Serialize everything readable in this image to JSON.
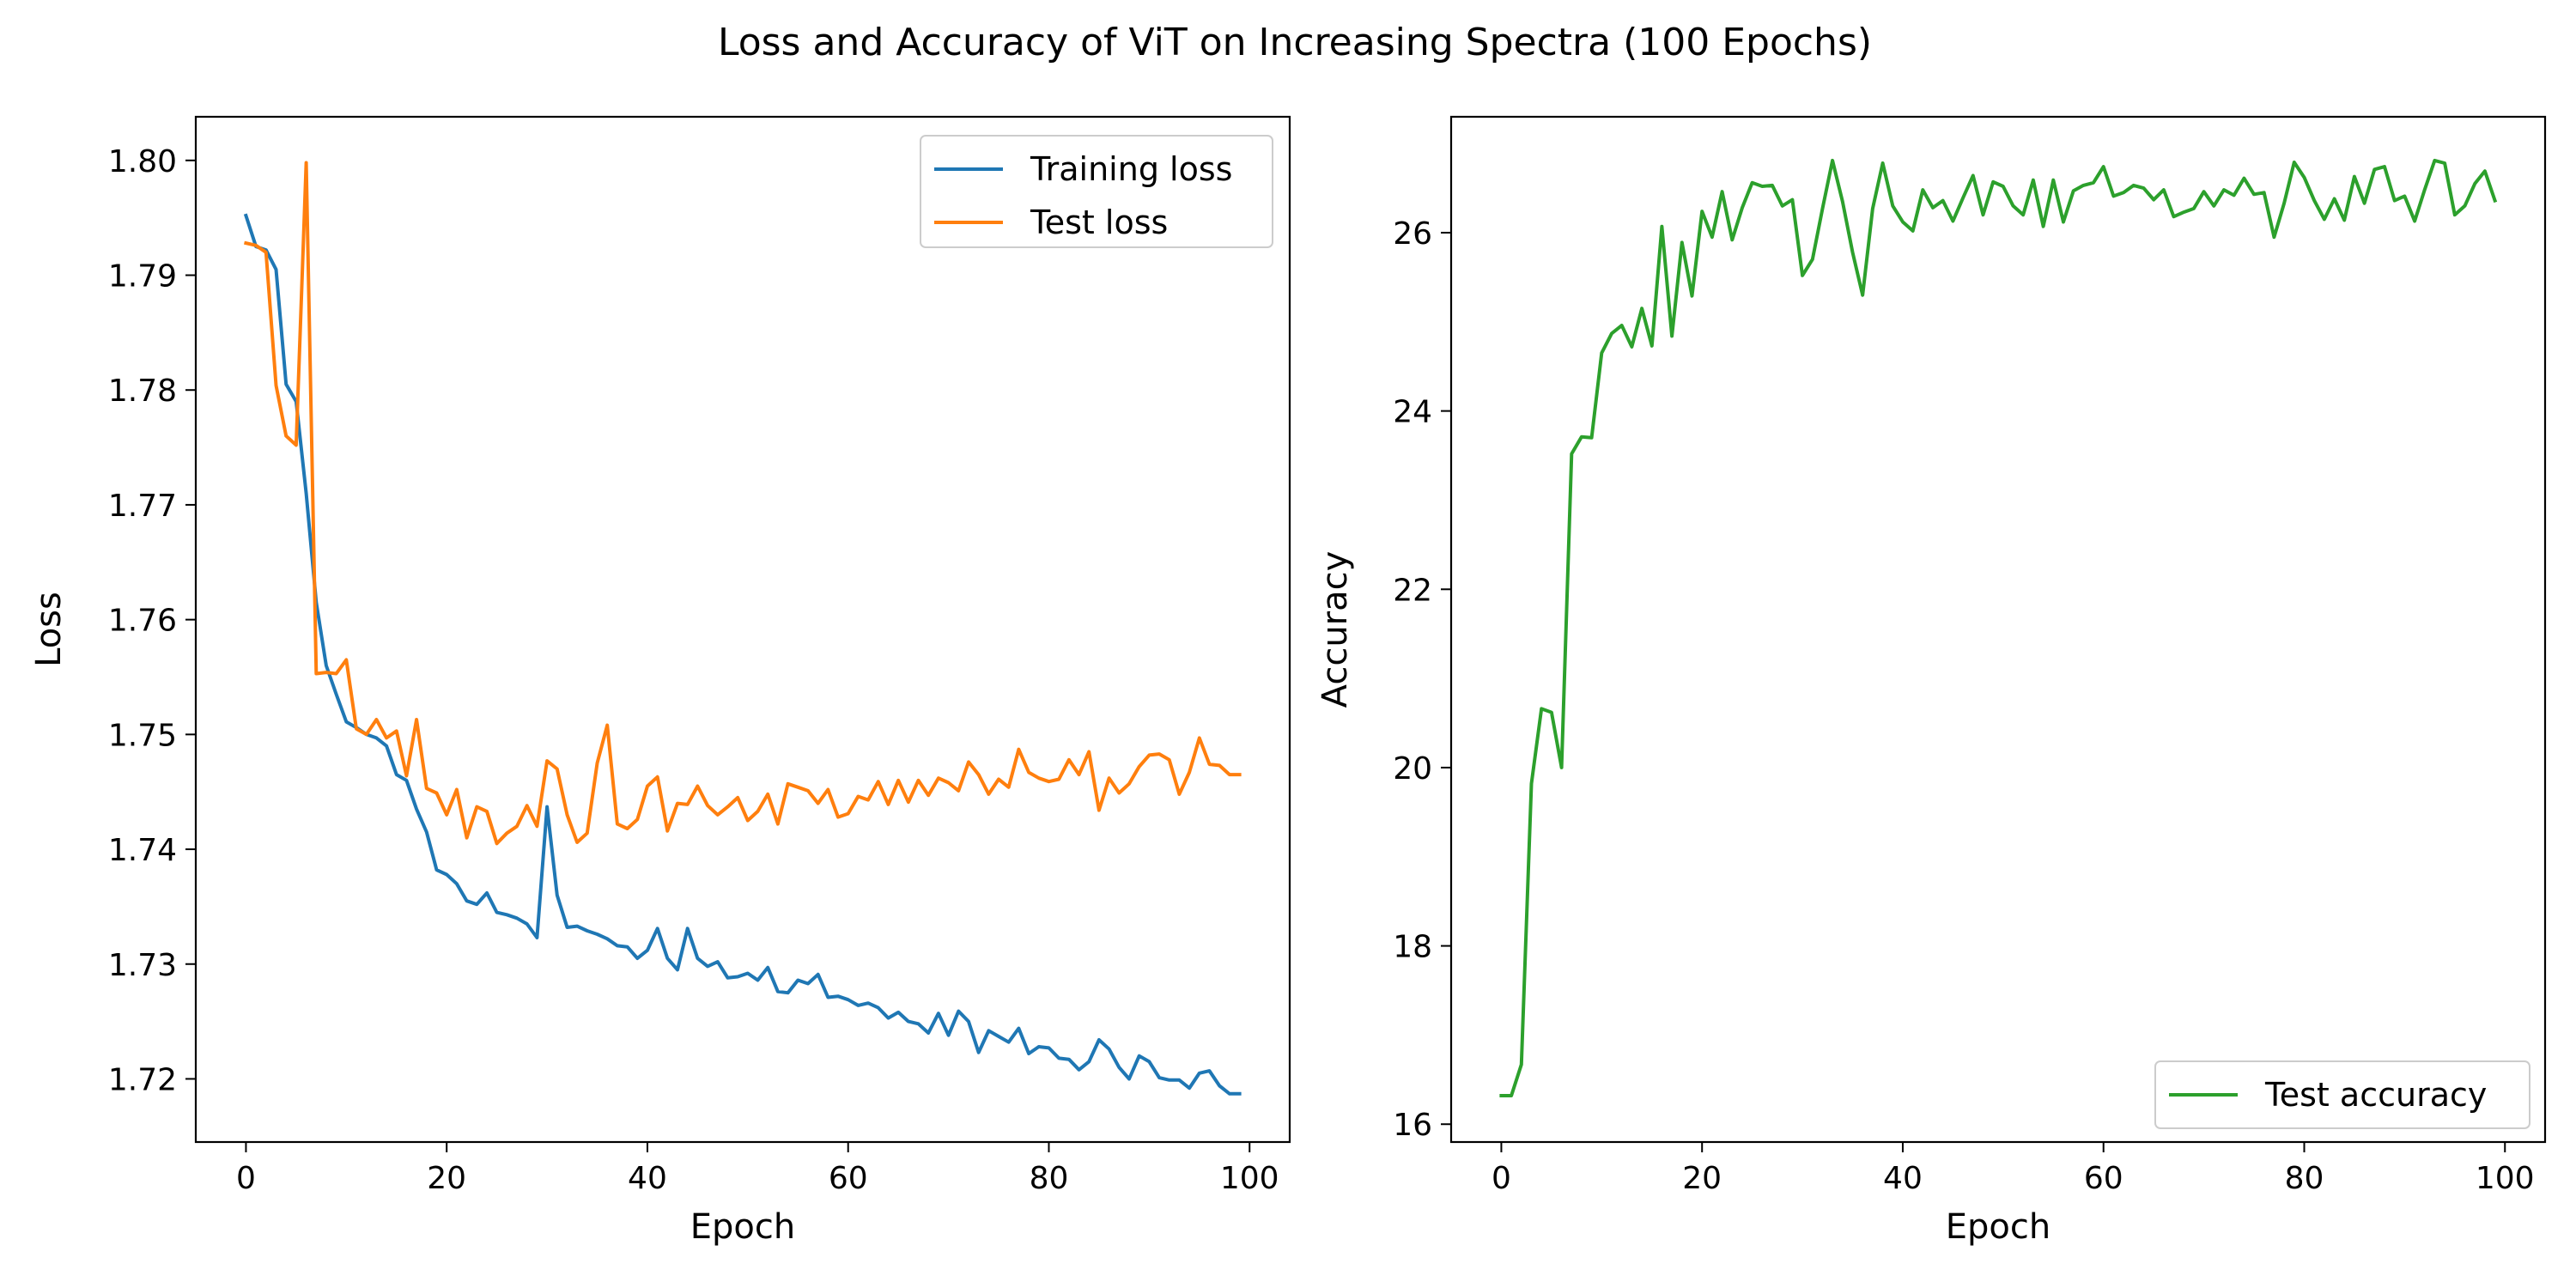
{
  "figure": {
    "suptitle": "Loss and Accuracy of ViT on Increasing Spectra (100 Epochs)"
  },
  "chart_data": [
    {
      "type": "line",
      "xlabel": "Epoch",
      "ylabel": "Loss",
      "xlim": [
        -5,
        104
      ],
      "ylim": [
        1.7145,
        1.8038
      ],
      "xticks": [
        0,
        20,
        40,
        60,
        80,
        100
      ],
      "yticks": [
        1.72,
        1.73,
        1.74,
        1.75,
        1.76,
        1.77,
        1.78,
        1.79,
        1.8
      ],
      "ytick_labels": [
        "1.72",
        "1.73",
        "1.74",
        "1.75",
        "1.76",
        "1.77",
        "1.78",
        "1.79",
        "1.80"
      ],
      "xtick_labels": [
        "0",
        "20",
        "40",
        "60",
        "80",
        "100"
      ],
      "grid": false,
      "legend_position": "top-right",
      "series": [
        {
          "name": "Training loss",
          "color": "#1f77b4",
          "x": [
            0,
            1,
            2,
            3,
            4,
            5,
            6,
            7,
            8,
            9,
            10,
            11,
            12,
            13,
            14,
            15,
            16,
            17,
            18,
            19,
            20,
            21,
            22,
            23,
            24,
            25,
            26,
            27,
            28,
            29,
            30,
            31,
            32,
            33,
            34,
            35,
            36,
            37,
            38,
            39,
            40,
            41,
            42,
            43,
            44,
            45,
            46,
            47,
            48,
            49,
            50,
            51,
            52,
            53,
            54,
            55,
            56,
            57,
            58,
            59,
            60,
            61,
            62,
            63,
            64,
            65,
            66,
            67,
            68,
            69,
            70,
            71,
            72,
            73,
            74,
            75,
            76,
            77,
            78,
            79,
            80,
            81,
            82,
            83,
            84,
            85,
            86,
            87,
            88,
            89,
            90,
            91,
            92,
            93,
            94,
            95,
            96,
            97,
            98,
            99
          ],
          "values": [
            1.7952,
            1.7925,
            1.7922,
            1.7905,
            1.7805,
            1.779,
            1.771,
            1.7615,
            1.756,
            1.7535,
            1.7511,
            1.7506,
            1.75,
            1.7497,
            1.749,
            1.7465,
            1.746,
            1.7435,
            1.7415,
            1.7382,
            1.7378,
            1.737,
            1.7355,
            1.7352,
            1.7362,
            1.7345,
            1.7343,
            1.734,
            1.7335,
            1.7323,
            1.7437,
            1.736,
            1.7332,
            1.7333,
            1.7329,
            1.7326,
            1.7322,
            1.7316,
            1.7315,
            1.7305,
            1.7312,
            1.7331,
            1.7305,
            1.7295,
            1.7331,
            1.7305,
            1.7298,
            1.7302,
            1.7288,
            1.7289,
            1.7292,
            1.7286,
            1.7297,
            1.7276,
            1.7275,
            1.7286,
            1.7283,
            1.7291,
            1.7271,
            1.7272,
            1.7269,
            1.7264,
            1.7266,
            1.7262,
            1.7253,
            1.7258,
            1.725,
            1.7248,
            1.724,
            1.7257,
            1.7238,
            1.7259,
            1.725,
            1.7223,
            1.7242,
            1.7237,
            1.7232,
            1.7244,
            1.7222,
            1.7228,
            1.7227,
            1.7218,
            1.7217,
            1.7208,
            1.7215,
            1.7234,
            1.7226,
            1.721,
            1.72,
            1.722,
            1.7215,
            1.7201,
            1.7199,
            1.7199,
            1.7192,
            1.7205,
            1.7207,
            1.7194,
            1.7187,
            1.7187
          ]
        },
        {
          "name": "Test loss",
          "color": "#ff7f0e",
          "x": [
            0,
            1,
            2,
            3,
            4,
            5,
            6,
            7,
            8,
            9,
            10,
            11,
            12,
            13,
            14,
            15,
            16,
            17,
            18,
            19,
            20,
            21,
            22,
            23,
            24,
            25,
            26,
            27,
            28,
            29,
            30,
            31,
            32,
            33,
            34,
            35,
            36,
            37,
            38,
            39,
            40,
            41,
            42,
            43,
            44,
            45,
            46,
            47,
            48,
            49,
            50,
            51,
            52,
            53,
            54,
            55,
            56,
            57,
            58,
            59,
            60,
            61,
            62,
            63,
            64,
            65,
            66,
            67,
            68,
            69,
            70,
            71,
            72,
            73,
            74,
            75,
            76,
            77,
            78,
            79,
            80,
            81,
            82,
            83,
            84,
            85,
            86,
            87,
            88,
            89,
            90,
            91,
            92,
            93,
            94,
            95,
            96,
            97,
            98,
            99
          ],
          "values": [
            1.7928,
            1.7926,
            1.792,
            1.7804,
            1.776,
            1.7752,
            1.7998,
            1.7553,
            1.7554,
            1.7553,
            1.7565,
            1.7505,
            1.75,
            1.7513,
            1.7497,
            1.7503,
            1.7464,
            1.7513,
            1.7453,
            1.7449,
            1.743,
            1.7452,
            1.741,
            1.7437,
            1.7433,
            1.7405,
            1.7414,
            1.742,
            1.7438,
            1.742,
            1.7477,
            1.747,
            1.743,
            1.7406,
            1.7414,
            1.7475,
            1.7508,
            1.7422,
            1.7418,
            1.7426,
            1.7455,
            1.7463,
            1.7416,
            1.744,
            1.7439,
            1.7455,
            1.7438,
            1.743,
            1.7437,
            1.7445,
            1.7425,
            1.7433,
            1.7448,
            1.7422,
            1.7457,
            1.7454,
            1.7451,
            1.744,
            1.7452,
            1.7428,
            1.7431,
            1.7446,
            1.7443,
            1.7459,
            1.7439,
            1.746,
            1.7441,
            1.746,
            1.7447,
            1.7462,
            1.7458,
            1.7451,
            1.7476,
            1.7465,
            1.7448,
            1.7461,
            1.7454,
            1.7487,
            1.7467,
            1.7462,
            1.7459,
            1.7461,
            1.7478,
            1.7465,
            1.7485,
            1.7434,
            1.7462,
            1.7449,
            1.7457,
            1.7472,
            1.7482,
            1.7483,
            1.7478,
            1.7448,
            1.7467,
            1.7497,
            1.7474,
            1.7473,
            1.7465,
            1.7465
          ]
        }
      ]
    },
    {
      "type": "line",
      "xlabel": "Epoch",
      "ylabel": "Accuracy",
      "xlim": [
        -5,
        104
      ],
      "ylim": [
        15.8,
        27.3
      ],
      "xticks": [
        0,
        20,
        40,
        60,
        80,
        100
      ],
      "yticks": [
        16,
        18,
        20,
        22,
        24,
        26
      ],
      "xtick_labels": [
        "0",
        "20",
        "40",
        "60",
        "80",
        "100"
      ],
      "ytick_labels": [
        "16",
        "18",
        "20",
        "22",
        "24",
        "26"
      ],
      "grid": false,
      "legend_position": "bottom-right",
      "series": [
        {
          "name": "Test accuracy",
          "color": "#2ca02c",
          "x": [
            0,
            1,
            2,
            3,
            4,
            5,
            6,
            7,
            8,
            9,
            10,
            11,
            12,
            13,
            14,
            15,
            16,
            17,
            18,
            19,
            20,
            21,
            22,
            23,
            24,
            25,
            26,
            27,
            28,
            29,
            30,
            31,
            32,
            33,
            34,
            35,
            36,
            37,
            38,
            39,
            40,
            41,
            42,
            43,
            44,
            45,
            46,
            47,
            48,
            49,
            50,
            51,
            52,
            53,
            54,
            55,
            56,
            57,
            58,
            59,
            60,
            61,
            62,
            63,
            64,
            65,
            66,
            67,
            68,
            69,
            70,
            71,
            72,
            73,
            74,
            75,
            76,
            77,
            78,
            79,
            80,
            81,
            82,
            83,
            84,
            85,
            86,
            87,
            88,
            89,
            90,
            91,
            92,
            93,
            94,
            95,
            96,
            97,
            98,
            99
          ],
          "values": [
            16.32,
            16.32,
            16.67,
            19.82,
            20.66,
            20.62,
            20.0,
            23.52,
            23.71,
            23.7,
            24.65,
            24.87,
            24.96,
            24.72,
            25.15,
            24.73,
            26.07,
            24.84,
            25.89,
            25.29,
            26.24,
            25.95,
            26.46,
            25.92,
            26.28,
            26.56,
            26.52,
            26.53,
            26.3,
            26.37,
            25.52,
            25.7,
            26.27,
            26.81,
            26.35,
            25.78,
            25.3,
            26.27,
            26.78,
            26.3,
            26.12,
            26.02,
            26.48,
            26.28,
            26.36,
            26.13,
            26.39,
            26.64,
            26.2,
            26.57,
            26.52,
            26.3,
            26.2,
            26.59,
            26.07,
            26.59,
            26.12,
            26.47,
            26.53,
            26.56,
            26.74,
            26.41,
            26.45,
            26.53,
            26.5,
            26.37,
            26.48,
            26.18,
            26.23,
            26.27,
            26.46,
            26.3,
            26.48,
            26.42,
            26.61,
            26.43,
            26.45,
            25.95,
            26.33,
            26.79,
            26.62,
            26.36,
            26.15,
            26.38,
            26.14,
            26.63,
            26.33,
            26.71,
            26.74,
            26.36,
            26.41,
            26.13,
            26.48,
            26.81,
            26.78,
            26.2,
            26.3,
            26.55,
            26.69,
            26.36
          ]
        }
      ]
    }
  ]
}
